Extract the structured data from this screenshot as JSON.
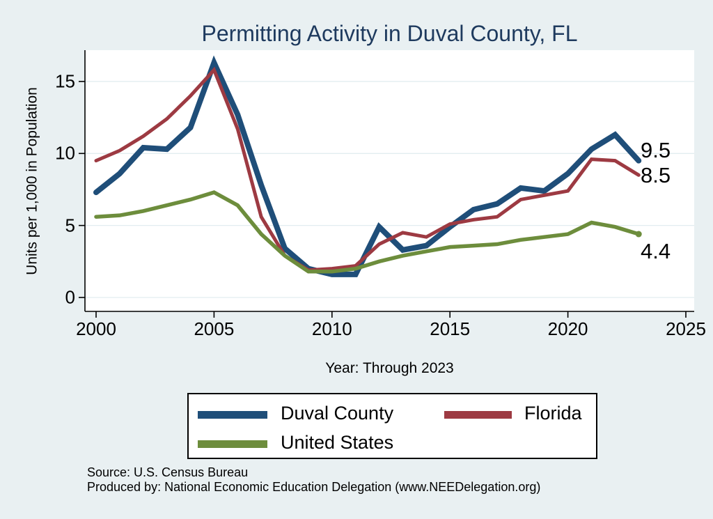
{
  "title": "Permitting Activity in Duval County, FL",
  "x_axis_label": "Year: Through 2023",
  "y_axis_label": "Units per 1,000 in Population",
  "source_line1": "Source: U.S. Census Bureau",
  "source_line2": "Produced by: National Economic Education Delegation (www.NEEDelegation.org)",
  "colors": {
    "background": "#e9f0f2",
    "plot_background": "#ffffff",
    "gridline": "#e2edf0",
    "axis": "#000000",
    "title": "#1e3a5e",
    "duval": "#1f4e79",
    "florida": "#9d3a42",
    "united_states": "#6d8d3c"
  },
  "legend": {
    "items": [
      {
        "label": "Duval County",
        "color": "#1f4e79"
      },
      {
        "label": "Florida",
        "color": "#9d3a42"
      },
      {
        "label": "United States",
        "color": "#6d8d3c"
      }
    ]
  },
  "end_labels": [
    {
      "text": "9.5",
      "series": "Duval County"
    },
    {
      "text": "8.5",
      "series": "Florida"
    },
    {
      "text": "4.4",
      "series": "United States"
    }
  ],
  "chart_data": {
    "type": "line",
    "title": "Permitting Activity in Duval County, FL",
    "xlabel": "Year: Through 2023",
    "ylabel": "Units per 1,000 in Population",
    "grid": "horizontal",
    "legend_position": "bottom",
    "xlim": [
      1999.5,
      2025.7
    ],
    "ylim": [
      -1,
      17.2
    ],
    "x_tick_labels": [
      "2000",
      "2005",
      "2010",
      "2015",
      "2020",
      "2025"
    ],
    "x_ticks": [
      2000,
      2005,
      2010,
      2015,
      2020,
      2025
    ],
    "y_tick_labels": [
      "0",
      "5",
      "10",
      "15"
    ],
    "y_ticks": [
      0,
      5,
      10,
      15
    ],
    "x": [
      2000,
      2001,
      2002,
      2003,
      2004,
      2005,
      2006,
      2007,
      2008,
      2009,
      2010,
      2011,
      2012,
      2013,
      2014,
      2015,
      2016,
      2017,
      2018,
      2019,
      2020,
      2021,
      2022,
      2023
    ],
    "series": [
      {
        "name": "Duval County",
        "color": "#1f4e79",
        "width": 8,
        "end_marker": false,
        "values": [
          7.3,
          8.6,
          10.4,
          10.3,
          11.8,
          16.3,
          12.7,
          7.8,
          3.4,
          2.0,
          1.6,
          1.6,
          4.9,
          3.3,
          3.6,
          4.9,
          6.1,
          6.5,
          7.6,
          7.4,
          8.6,
          10.3,
          11.3,
          9.5
        ]
      },
      {
        "name": "Florida",
        "color": "#9d3a42",
        "width": 5,
        "end_marker": false,
        "values": [
          9.5,
          10.2,
          11.2,
          12.4,
          14.0,
          15.8,
          11.7,
          5.6,
          2.9,
          1.9,
          2.0,
          2.2,
          3.7,
          4.5,
          4.2,
          5.1,
          5.4,
          5.6,
          6.8,
          7.1,
          7.4,
          9.6,
          9.5,
          8.5
        ]
      },
      {
        "name": "United States",
        "color": "#6d8d3c",
        "width": 5.5,
        "end_marker": true,
        "values": [
          5.6,
          5.7,
          6.0,
          6.4,
          6.8,
          7.3,
          6.4,
          4.4,
          2.9,
          1.8,
          1.8,
          2.0,
          2.5,
          2.9,
          3.2,
          3.5,
          3.6,
          3.7,
          4.0,
          4.2,
          4.4,
          5.2,
          4.9,
          4.4
        ]
      }
    ],
    "end_value_labels": [
      "9.5",
      "8.5",
      "4.4"
    ]
  }
}
